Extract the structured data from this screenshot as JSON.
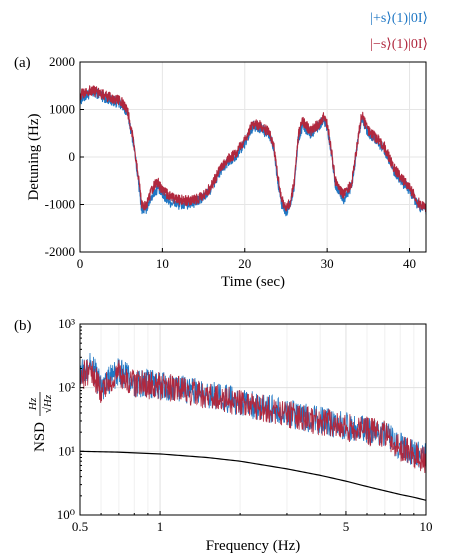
{
  "chart_data": [
    {
      "panel_label": "(a)",
      "type": "line",
      "xlabel": "Time (sec)",
      "ylabel": "Detuning (Hz)",
      "xlim": [
        0,
        42
      ],
      "ylim": [
        -2000,
        2000
      ],
      "xticks": [
        "0",
        "10",
        "20",
        "30",
        "40"
      ],
      "yticks": [
        "2000",
        "1000",
        "0",
        "-1000",
        "-2000"
      ],
      "grid": true,
      "legend_placement": "top-right, outside axes",
      "series": [
        {
          "name": "|+s⟩(1)|0I⟩",
          "color": "#1f77c4",
          "x": [
            0,
            1,
            2,
            3,
            4,
            5,
            5.8,
            6.5,
            7,
            7.5,
            8,
            8.5,
            9,
            9.5,
            10,
            11,
            12,
            13,
            14,
            15,
            16,
            17,
            18,
            19,
            20,
            21,
            22,
            23,
            23.5,
            24,
            24.5,
            25,
            25.5,
            26,
            26.5,
            27,
            28,
            29,
            29.5,
            30,
            30.5,
            31,
            32,
            33,
            33.8,
            34.2,
            35,
            36,
            37,
            38,
            39,
            40,
            41,
            42
          ],
          "y": [
            1200,
            1320,
            1350,
            1250,
            1180,
            1120,
            900,
            300,
            -400,
            -1100,
            -1100,
            -900,
            -750,
            -650,
            -800,
            -950,
            -1000,
            -1000,
            -950,
            -850,
            -650,
            -300,
            -100,
            50,
            300,
            650,
            600,
            450,
            200,
            -500,
            -1000,
            -1200,
            -1000,
            -600,
            400,
            650,
            500,
            650,
            800,
            650,
            100,
            -600,
            -900,
            -600,
            400,
            800,
            500,
            350,
            150,
            -250,
            -500,
            -700,
            -1000,
            -1150
          ]
        },
        {
          "name": "|−s⟩(1)|0I⟩",
          "color": "#b0283e",
          "x": [
            0,
            1,
            2,
            3,
            4,
            5,
            5.8,
            6.5,
            7,
            7.5,
            8,
            8.5,
            9,
            9.5,
            10,
            11,
            12,
            13,
            14,
            15,
            16,
            17,
            18,
            19,
            20,
            21,
            22,
            23,
            23.5,
            24,
            24.5,
            25,
            25.5,
            26,
            26.5,
            27,
            28,
            29,
            29.5,
            30,
            30.5,
            31,
            32,
            33,
            33.8,
            34.2,
            35,
            36,
            37,
            38,
            39,
            40,
            41,
            42
          ],
          "y": [
            1300,
            1400,
            1380,
            1300,
            1220,
            1170,
            950,
            350,
            -300,
            -1000,
            -1050,
            -800,
            -600,
            -550,
            -700,
            -850,
            -900,
            -920,
            -900,
            -820,
            -600,
            -250,
            -50,
            100,
            350,
            700,
            650,
            500,
            250,
            -400,
            -900,
            -1100,
            -950,
            -550,
            450,
            750,
            550,
            700,
            850,
            700,
            150,
            -500,
            -800,
            -550,
            450,
            900,
            550,
            400,
            200,
            -200,
            -450,
            -650,
            -950,
            -1100
          ]
        }
      ]
    },
    {
      "panel_label": "(b)",
      "type": "line",
      "xlabel": "Frequency (Hz)",
      "ylabel": "NSD",
      "ylabel_unit_num": "Hz",
      "ylabel_unit_den": "√Hz",
      "x_scale": "log",
      "y_scale": "log",
      "xlim": [
        0.5,
        10
      ],
      "ylim": [
        1,
        1000
      ],
      "xticks": [
        "0.5",
        "1",
        "5",
        "10"
      ],
      "yticks": [
        "10³",
        "10²",
        "10¹",
        "10⁰"
      ],
      "grid": true,
      "series": [
        {
          "color": "#1f77c4",
          "x": [
            0.5,
            0.55,
            0.6,
            0.7,
            0.8,
            1,
            1.5,
            2,
            3,
            4,
            5,
            6,
            7,
            8,
            10
          ],
          "y": [
            150,
            250,
            100,
            180,
            120,
            110,
            80,
            60,
            40,
            30,
            25,
            22,
            20,
            12,
            8
          ]
        },
        {
          "color": "#b0283e",
          "x": [
            0.5,
            0.55,
            0.6,
            0.7,
            0.8,
            1,
            1.5,
            2,
            3,
            4,
            5,
            6,
            7,
            8,
            10
          ],
          "y": [
            140,
            200,
            90,
            170,
            115,
            105,
            75,
            58,
            38,
            29,
            24,
            21,
            19,
            11,
            7.5
          ]
        },
        {
          "color": "#000000",
          "x": [
            0.5,
            0.7,
            1,
            1.5,
            2,
            3,
            4,
            5,
            6,
            7,
            8,
            9,
            10
          ],
          "y": [
            10,
            9.7,
            9.1,
            8,
            7,
            5.3,
            4.2,
            3.4,
            2.8,
            2.4,
            2.1,
            1.9,
            1.7
          ]
        }
      ]
    }
  ]
}
